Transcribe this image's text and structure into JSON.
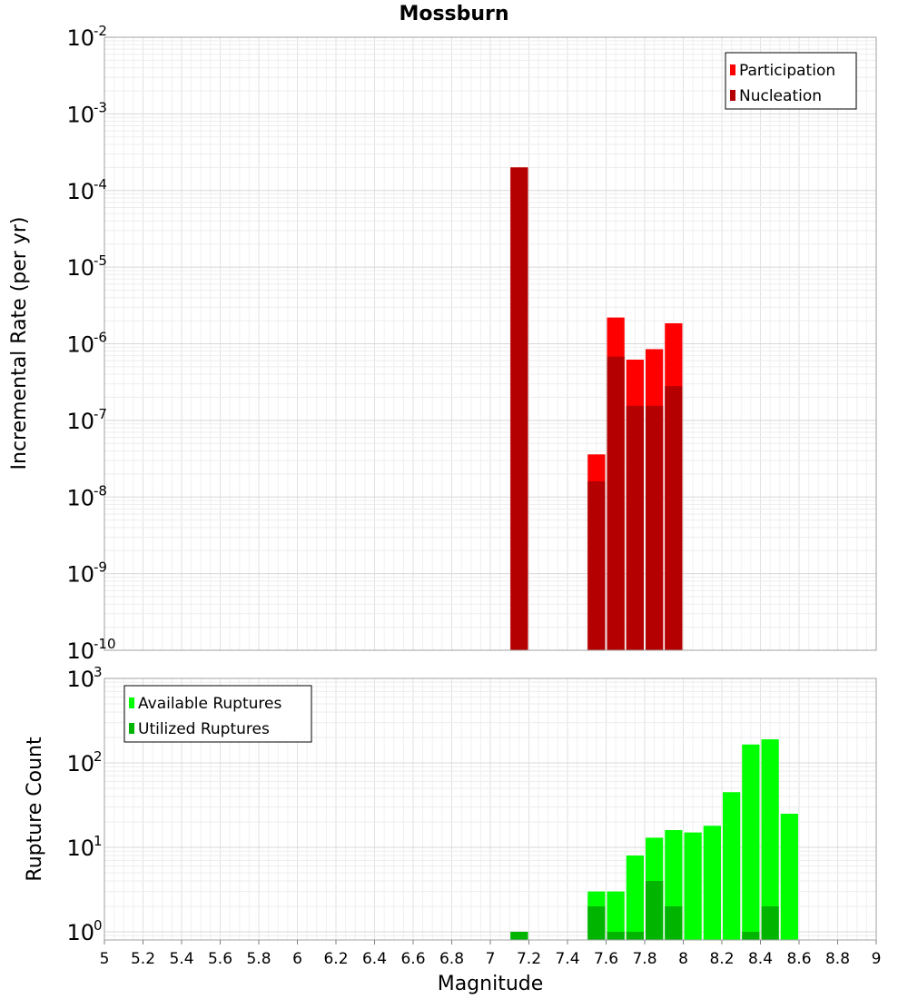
{
  "chart_data": [
    {
      "type": "bar",
      "title": "Mossburn",
      "ylabel": "Incremental Rate (per yr)",
      "yscale": "log",
      "ylim": [
        1e-10,
        0.01
      ],
      "xlim": [
        5,
        9
      ],
      "bin_width": 0.1,
      "grid": true,
      "legend_position": "top-right",
      "x": [
        7.15,
        7.55,
        7.65,
        7.75,
        7.85,
        7.95
      ],
      "series": [
        {
          "name": "Participation",
          "color": "#ff0000",
          "values": [
            0.0002,
            3.6e-08,
            2.2e-06,
            6.2e-07,
            8.5e-07,
            1.85e-06
          ]
        },
        {
          "name": "Nucleation",
          "color": "#b40000",
          "values": [
            0.0002,
            1.6e-08,
            6.8e-07,
            1.55e-07,
            1.55e-07,
            2.8e-07
          ]
        }
      ],
      "yticks": [
        {
          "base": "10",
          "exp": "-10"
        },
        {
          "base": "10",
          "exp": "-9"
        },
        {
          "base": "10",
          "exp": "-8"
        },
        {
          "base": "10",
          "exp": "-7"
        },
        {
          "base": "10",
          "exp": "-6"
        },
        {
          "base": "10",
          "exp": "-5"
        },
        {
          "base": "10",
          "exp": "-4"
        },
        {
          "base": "10",
          "exp": "-3"
        },
        {
          "base": "10",
          "exp": "-2"
        }
      ]
    },
    {
      "type": "bar",
      "xlabel": "Magnitude",
      "ylabel": "Rupture Count",
      "yscale": "log",
      "ylim": [
        0.8,
        1000
      ],
      "xlim": [
        5,
        9
      ],
      "bin_width": 0.1,
      "grid": true,
      "legend_position": "top-left",
      "x": [
        7.15,
        7.55,
        7.65,
        7.75,
        7.85,
        7.95,
        8.05,
        8.15,
        8.25,
        8.35,
        8.45,
        8.55
      ],
      "series": [
        {
          "name": "Available Ruptures",
          "color": "#00ff00",
          "values": [
            1,
            3,
            3,
            8,
            13,
            16,
            15,
            18,
            45,
            165,
            190,
            25
          ]
        },
        {
          "name": "Utilized Ruptures",
          "color": "#00b400",
          "values": [
            1,
            2,
            1,
            1,
            4,
            2,
            0,
            0,
            0,
            1,
            2,
            0
          ]
        }
      ],
      "yticks": [
        {
          "base": "10",
          "exp": "0"
        },
        {
          "base": "10",
          "exp": "1"
        },
        {
          "base": "10",
          "exp": "2"
        },
        {
          "base": "10",
          "exp": "3"
        }
      ],
      "xticks": [
        "5",
        "5.2",
        "5.4",
        "5.6",
        "5.8",
        "6",
        "6.2",
        "6.4",
        "6.6",
        "6.8",
        "7",
        "7.2",
        "7.4",
        "7.6",
        "7.8",
        "8",
        "8.2",
        "8.4",
        "8.6",
        "8.8",
        "9"
      ]
    }
  ]
}
